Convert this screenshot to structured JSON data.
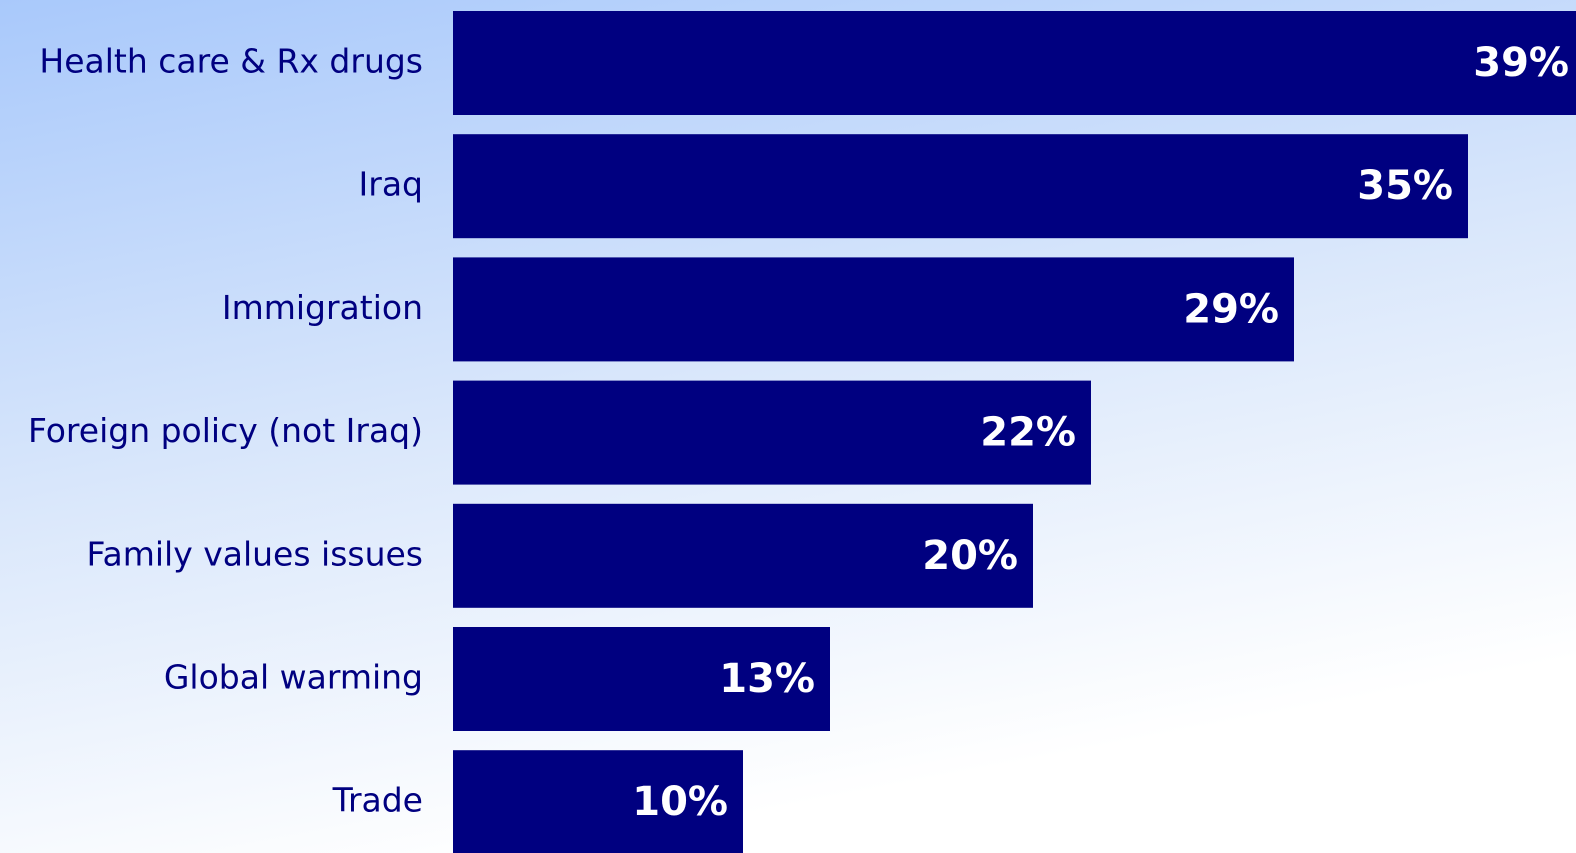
{
  "chart_data": {
    "type": "bar",
    "orientation": "horizontal",
    "categories": [
      "Health care & Rx drugs",
      "Iraq",
      "Immigration",
      "Foreign policy (not Iraq)",
      "Family values issues",
      "Global warming",
      "Trade"
    ],
    "values": [
      39,
      35,
      29,
      22,
      20,
      13,
      10
    ],
    "value_labels": [
      "39%",
      "35%",
      "29%",
      "22%",
      "20%",
      "13%",
      "10%"
    ],
    "color": "#000080"
  }
}
